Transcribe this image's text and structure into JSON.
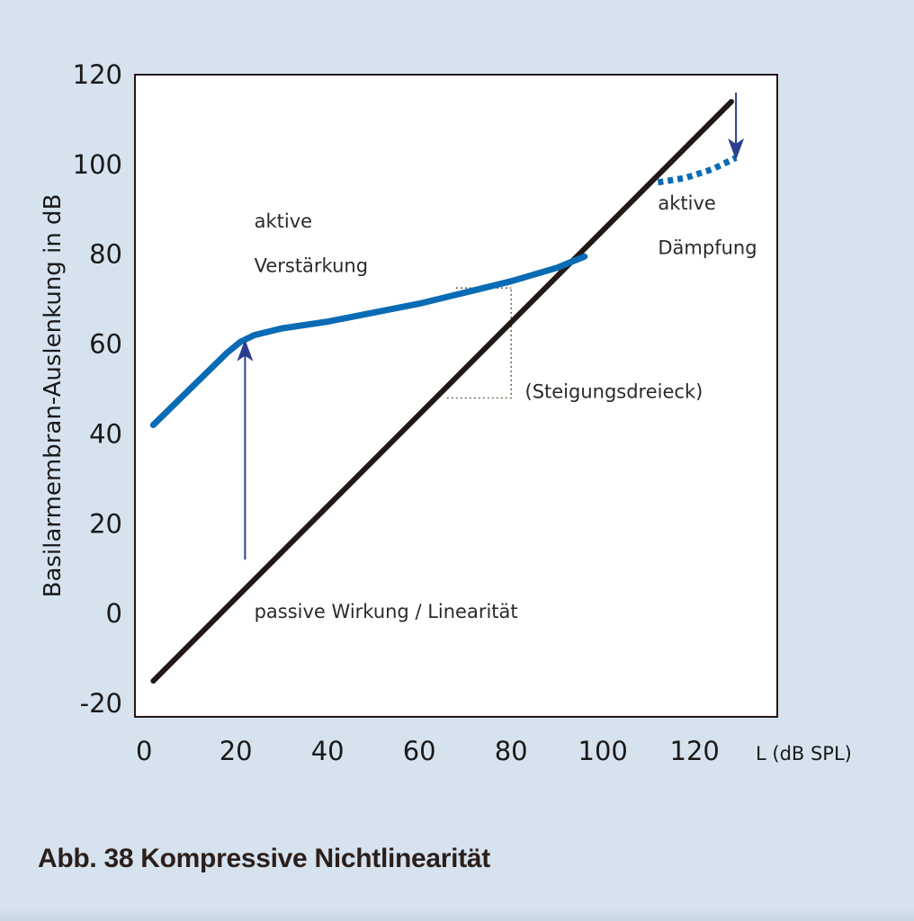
{
  "caption": "Abb. 38 Kompressive Nichtlinearität",
  "colors": {
    "background": "#d6e3ef",
    "plot_background": "#ffffff",
    "active_curve": "#0a6bb5",
    "linear_line": "#231815",
    "arrow": "#2c3f8f",
    "triangle": "#7a6a5a"
  },
  "chart_data": {
    "type": "line",
    "title": "",
    "xlabel": "L (dB SPL)",
    "ylabel": "Basilarmembran-Auslenkung in dB",
    "xlim": [
      -2,
      138
    ],
    "ylim": [
      -23,
      120
    ],
    "x_ticks": [
      0,
      20,
      40,
      60,
      80,
      100,
      120
    ],
    "y_ticks": [
      -20,
      0,
      20,
      40,
      60,
      80,
      100,
      120
    ],
    "grid": false,
    "legend": "none",
    "series": [
      {
        "style": "solid",
        "color": "#231815",
        "points": [
          [
            2,
            -15
          ],
          [
            128,
            114
          ]
        ]
      },
      {
        "style": "solid",
        "color": "#0a6bb5",
        "points": [
          [
            2,
            42
          ],
          [
            10,
            50
          ],
          [
            18,
            58
          ],
          [
            21,
            60.5
          ],
          [
            24,
            62
          ],
          [
            30,
            63.5
          ],
          [
            40,
            65
          ],
          [
            50,
            67
          ],
          [
            60,
            69
          ],
          [
            70,
            71.5
          ],
          [
            80,
            74
          ],
          [
            90,
            77
          ],
          [
            96,
            79.5
          ]
        ]
      },
      {
        "style": "dotted",
        "color": "#0a6bb5",
        "points": [
          [
            112,
            96
          ],
          [
            118,
            97
          ],
          [
            124,
            99
          ],
          [
            129,
            101.5
          ]
        ]
      }
    ],
    "annotations": [
      {
        "text": "aktive",
        "x": 24,
        "y": 86
      },
      {
        "text": "Verstärkung",
        "x": 24,
        "y": 76
      },
      {
        "text": "aktive",
        "x": 112,
        "y": 90
      },
      {
        "text": "Dämpfung",
        "x": 112,
        "y": 80
      },
      {
        "text": "(Steigungsdreieck)",
        "x": 83,
        "y": 48
      },
      {
        "text": "passive Wirkung / Linearität",
        "x": 24,
        "y": -1
      }
    ],
    "arrows": [
      {
        "from": [
          22,
          12
        ],
        "to": [
          22,
          61
        ]
      },
      {
        "from": [
          129,
          116
        ],
        "to": [
          129,
          101
        ]
      }
    ],
    "slope_triangles": [
      {
        "points": [
          [
            66,
            48
          ],
          [
            80,
            48
          ],
          [
            80,
            72.5
          ]
        ]
      },
      {
        "points": [
          [
            68,
            72.5
          ],
          [
            80,
            72.5
          ]
        ]
      }
    ]
  }
}
